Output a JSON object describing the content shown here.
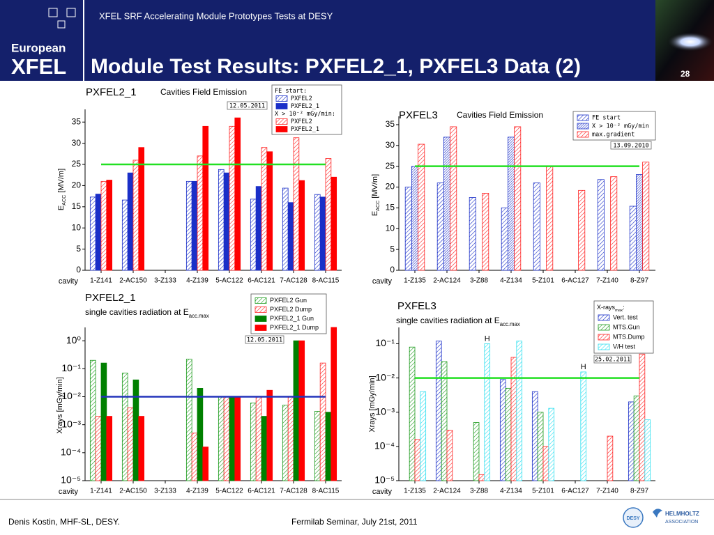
{
  "header": {
    "logo_top": "European",
    "logo_bottom": "XFEL",
    "subtitle": "XFEL SRF Accelerating Module Prototypes Tests at DESY",
    "title": "Module Test Results: PXFEL2_1, PXFEL3 Data (2)",
    "page": "28"
  },
  "footer": {
    "author": "Denis Kostin, MHF-SL, DESY.",
    "event": "Fermilab Seminar, July 21st, 2011",
    "logo_desy": "DESY",
    "logo_helmholtz_1": "HELMHOLTZ",
    "logo_helmholtz_2": "ASSOCIATION"
  },
  "chart_data": [
    {
      "type": "bar",
      "title": "PXFEL2_1",
      "subtitle": "Cavities Field Emission",
      "date": "12.05.2011",
      "x_label": "cavity",
      "y_label": "EACC [MV/m]",
      "legend_headings": [
        "FE start:",
        "X > 10⁻² mGy/min:"
      ],
      "categories": [
        "1-Z141",
        "2-AC150",
        "3-Z133",
        "4-Z139",
        "5-AC122",
        "6-AC121",
        "7-AC128",
        "8-AC115"
      ],
      "series": [
        {
          "name": "PXFEL2",
          "color": "#1a2fc8",
          "pattern": "hatched",
          "values": [
            17.3,
            16.6,
            null,
            21,
            23.8,
            16.8,
            19.4,
            17.9
          ]
        },
        {
          "name": "PXFEL2_1",
          "color": "#1a2fc8",
          "pattern": "solid",
          "values": [
            18,
            23,
            null,
            21,
            23,
            19.8,
            16,
            17.3
          ]
        },
        {
          "name": "PXFEL2",
          "color": "#ff2020",
          "pattern": "hatched",
          "values": [
            21,
            26,
            null,
            27,
            34,
            29,
            31.3,
            26.4
          ]
        },
        {
          "name": "PXFEL2_1",
          "color": "#ff0000",
          "pattern": "solid",
          "values": [
            21.3,
            29,
            null,
            34,
            36,
            28,
            21.2,
            22
          ]
        }
      ],
      "ylim": [
        0,
        38
      ],
      "yticks": [
        0,
        5,
        10,
        15,
        20,
        25,
        30,
        35
      ],
      "log_scale": false,
      "reference_line": {
        "value": 25,
        "color": "#22e022"
      }
    },
    {
      "type": "bar",
      "title": "PXFEL3",
      "subtitle": "Cavities Field Emission",
      "date": "13.09.2010",
      "x_label": "cavity",
      "y_label": "EACC [MV/m]",
      "categories": [
        "1-Z135",
        "2-AC124",
        "3-Z88",
        "4-Z134",
        "5-Z101",
        "6-AC127",
        "7-Z140",
        "8-Z97"
      ],
      "series": [
        {
          "name": "FE start",
          "color": "#1a2fc8",
          "pattern": "hatched",
          "values": [
            20,
            21,
            17.5,
            15,
            21,
            null,
            21.8,
            15.4
          ]
        },
        {
          "name": "X > 10⁻² mGy/min",
          "color": "#1a2fc8",
          "pattern": "dense",
          "values": [
            25,
            32,
            null,
            32,
            null,
            null,
            null,
            23
          ]
        },
        {
          "name": "max.gradient",
          "color": "#ff2020",
          "pattern": "hatched",
          "values": [
            30.3,
            34.5,
            18.5,
            34.5,
            25,
            19.2,
            22.5,
            26
          ]
        }
      ],
      "ylim": [
        0,
        37
      ],
      "yticks": [
        0,
        5,
        10,
        15,
        20,
        25,
        30,
        35
      ],
      "log_scale": false,
      "reference_line": {
        "value": 25,
        "color": "#22e022"
      }
    },
    {
      "type": "bar",
      "title": "PXFEL2_1",
      "subtitle": "single cavities radiation at Eacc.max",
      "date": "12.05.2011",
      "x_label": "cavity",
      "y_label": "Xrays [mGy/min]",
      "categories": [
        "1-Z141",
        "2-AC150",
        "3-Z133",
        "4-Z139",
        "5-AC122",
        "6-AC121",
        "7-AC128",
        "8-AC115"
      ],
      "series": [
        {
          "name": "PXFEL2 Gun",
          "color": "#1a9a1a",
          "pattern": "hatched",
          "values": [
            0.2,
            0.07,
            null,
            0.22,
            0.01,
            0.006,
            0.005,
            0.003
          ]
        },
        {
          "name": "PXFEL2 Dump",
          "color": "#ff2020",
          "pattern": "hatched",
          "values": [
            0.002,
            0.004,
            null,
            0.0005,
            0.01,
            0.01,
            0.01,
            0.16
          ]
        },
        {
          "name": "PXFEL2_1 Gun",
          "color": "#008000",
          "pattern": "solid",
          "values": [
            0.16,
            0.04,
            null,
            0.02,
            0.01,
            0.002,
            1,
            0.0028
          ]
        },
        {
          "name": "PXFEL2_1 Dump",
          "color": "#ff0000",
          "pattern": "solid",
          "values": [
            0.002,
            0.002,
            null,
            0.00016,
            0.01,
            0.017,
            1,
            3
          ]
        }
      ],
      "ylim": [
        1e-05,
        3
      ],
      "log_scale": true,
      "yticks": [
        {
          "value": 1e-05,
          "label": "10⁻⁵"
        },
        {
          "value": 0.0001,
          "label": "10⁻⁴"
        },
        {
          "value": 0.001,
          "label": "10⁻³"
        },
        {
          "value": 0.01,
          "label": "10⁻²"
        },
        {
          "value": 0.1,
          "label": "10⁻¹"
        },
        {
          "value": 1,
          "label": "10⁰"
        }
      ],
      "reference_line": {
        "value": 0.01,
        "color": "#2233bb"
      }
    },
    {
      "type": "bar",
      "title": "PXFEL3",
      "subtitle": "single cavities radiation at Eacc.max",
      "date": "25.02.2011",
      "x_label": "cavity",
      "y_label": "Xrays [mGy/min]",
      "legend_title": "X-raysmax:",
      "categories": [
        "1-Z135",
        "2-AC124",
        "3-Z88",
        "4-Z134",
        "5-Z101",
        "6-AC127",
        "7-Z140",
        "8-Z97"
      ],
      "series": [
        {
          "name": "Vert. test",
          "color": "#1a2fc8",
          "pattern": "hatched",
          "values": [
            null,
            0.12,
            null,
            0.009,
            0.004,
            null,
            null,
            0.002
          ]
        },
        {
          "name": "MTS.Gun",
          "color": "#1a9a1a",
          "pattern": "hatched",
          "values": [
            0.08,
            0.03,
            0.0005,
            0.005,
            0.001,
            null,
            null,
            0.003
          ]
        },
        {
          "name": "MTS.Dump",
          "color": "#ff2020",
          "pattern": "hatched",
          "values": [
            0.00016,
            0.0003,
            1.5e-05,
            0.04,
            0.0001,
            null,
            0.0002,
            0.05
          ]
        },
        {
          "name": "V/H test",
          "color": "#30e0f0",
          "pattern": "hatched",
          "values": [
            0.004,
            null,
            0.1,
            0.12,
            0.0013,
            0.015,
            null,
            0.0006
          ]
        }
      ],
      "ylim": [
        1e-05,
        0.3
      ],
      "log_scale": true,
      "yticks": [
        {
          "value": 1e-05,
          "label": "10⁻⁵"
        },
        {
          "value": 0.0001,
          "label": "10⁻⁴"
        },
        {
          "value": 0.001,
          "label": "10⁻³"
        },
        {
          "value": 0.01,
          "label": "10⁻²"
        },
        {
          "value": 0.1,
          "label": "10⁻¹"
        }
      ],
      "reference_line": {
        "value": 0.01,
        "color": "#22e022"
      },
      "annotations": [
        {
          "text": "H",
          "category": 2
        },
        {
          "text": "H",
          "category": 5
        }
      ]
    }
  ]
}
